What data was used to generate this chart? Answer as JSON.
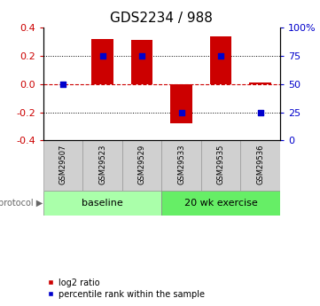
{
  "title": "GDS2234 / 988",
  "samples": [
    "GSM29507",
    "GSM29523",
    "GSM29529",
    "GSM29533",
    "GSM29535",
    "GSM29536"
  ],
  "log2_ratio": [
    0.0,
    0.32,
    0.31,
    -0.28,
    0.34,
    0.01
  ],
  "percentile_rank_pct": [
    50,
    75,
    75,
    25,
    75,
    25
  ],
  "ylim": [
    -0.4,
    0.4
  ],
  "yticks": [
    -0.4,
    -0.2,
    0.0,
    0.2,
    0.4
  ],
  "right_yticks": [
    0,
    25,
    50,
    75,
    100
  ],
  "bar_color": "#cc0000",
  "dot_color": "#0000cc",
  "bar_width": 0.55,
  "dot_size": 25,
  "hline_color": "#cc0000",
  "gridline_color": "#000000",
  "protocol_color_baseline": "#aaffaa",
  "protocol_color_exercise": "#66ee66",
  "legend_items": [
    "log2 ratio",
    "percentile rank within the sample"
  ],
  "legend_colors": [
    "#cc0000",
    "#0000cc"
  ],
  "bg_color": "#ffffff",
  "tick_color_left": "#cc0000",
  "tick_color_right": "#0000cc",
  "title_fontsize": 11,
  "tick_fontsize": 8,
  "sample_fontsize": 6,
  "protocol_fontsize": 8,
  "legend_fontsize": 7
}
